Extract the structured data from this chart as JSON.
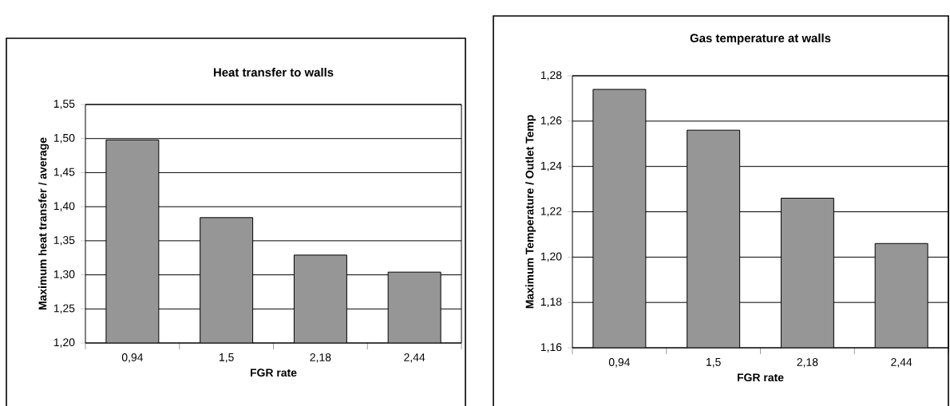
{
  "chart_data": [
    {
      "type": "bar",
      "title": "Heat transfer to walls",
      "xlabel": "FGR rate",
      "ylabel": "Maximum heat transfer / average",
      "categories": [
        "0,94",
        "1,5",
        "2,18",
        "2,44"
      ],
      "values": [
        1.498,
        1.384,
        1.329,
        1.304
      ],
      "color": "#969696",
      "ylim": [
        1.2,
        1.55
      ],
      "yticks": [
        {
          "value": 1.2,
          "label": "1,20"
        },
        {
          "value": 1.25,
          "label": "1,25"
        },
        {
          "value": 1.3,
          "label": "1,30"
        },
        {
          "value": 1.35,
          "label": "1,35"
        },
        {
          "value": 1.4,
          "label": "1,40"
        },
        {
          "value": 1.45,
          "label": "1,45"
        },
        {
          "value": 1.5,
          "label": "1,50"
        },
        {
          "value": 1.55,
          "label": "1,55"
        }
      ],
      "grid": "y"
    },
    {
      "type": "bar",
      "title": "Gas temperature at walls",
      "xlabel": "FGR rate",
      "ylabel": "Maximum Temperature / Outlet Temp",
      "categories": [
        "0,94",
        "1,5",
        "2,18",
        "2,44"
      ],
      "values": [
        1.274,
        1.256,
        1.226,
        1.206
      ],
      "color": "#969696",
      "ylim": [
        1.16,
        1.28
      ],
      "yticks": [
        {
          "value": 1.16,
          "label": "1,16"
        },
        {
          "value": 1.18,
          "label": "1,18"
        },
        {
          "value": 1.2,
          "label": "1,20"
        },
        {
          "value": 1.22,
          "label": "1,22"
        },
        {
          "value": 1.24,
          "label": "1,24"
        },
        {
          "value": 1.26,
          "label": "1,26"
        },
        {
          "value": 1.28,
          "label": "1,28"
        }
      ],
      "grid": "y"
    }
  ]
}
